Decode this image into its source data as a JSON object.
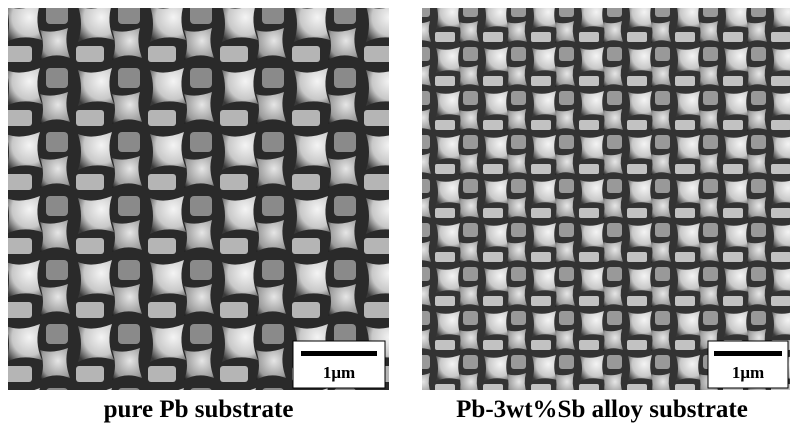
{
  "panels": [
    {
      "scale_label": "1μm",
      "caption": "pure Pb substrate"
    },
    {
      "scale_label": "1μm",
      "caption": "Pb-3wt%Sb alloy substrate"
    }
  ]
}
